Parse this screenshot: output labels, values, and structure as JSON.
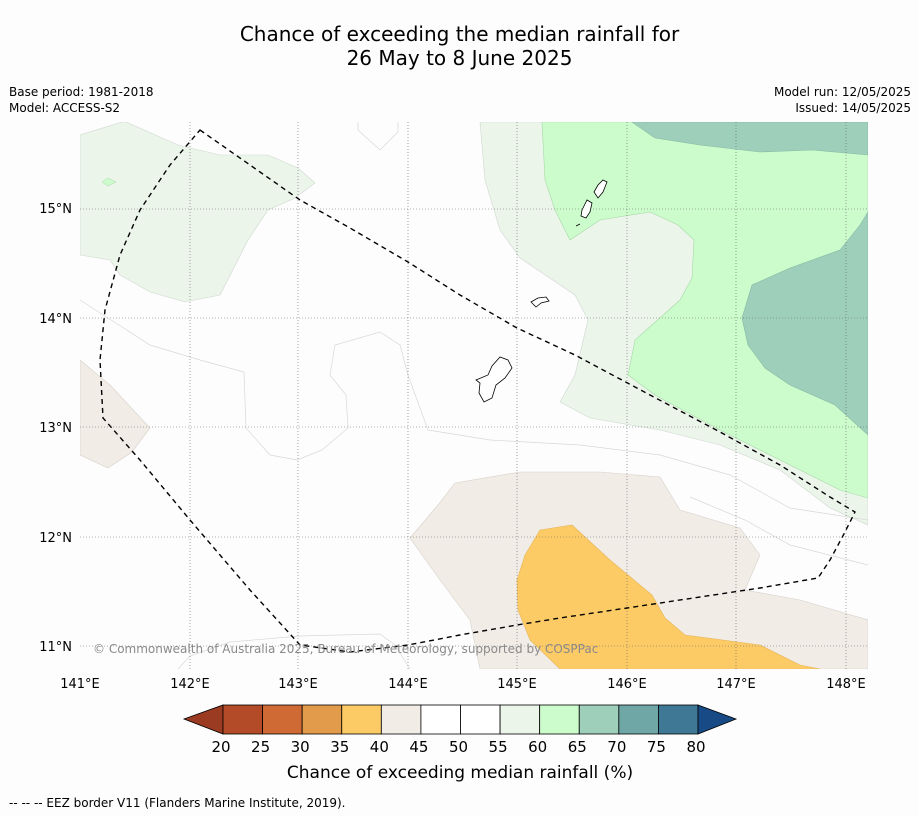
{
  "title_line1": "Chance of exceeding the median rainfall for",
  "title_line2": "26 May to 8 June 2025",
  "meta": {
    "base_period": "Base period: 1981-2018",
    "model": "Model: ACCESS-S2",
    "model_run": "Model run: 12/05/2025",
    "issued": "Issued: 14/05/2025"
  },
  "map": {
    "lat_labels": [
      "15°N",
      "14°N",
      "13°N",
      "12°N",
      "11°N"
    ],
    "lon_labels": [
      "141°E",
      "142°E",
      "143°E",
      "144°E",
      "145°E",
      "146°E",
      "147°E",
      "148°E"
    ],
    "copyright": "© Commonwealth of Australia 2025, Bureau of Meteorology, supported by COSPPac"
  },
  "colorbar": {
    "ticks": [
      "20",
      "25",
      "30",
      "35",
      "40",
      "45",
      "50",
      "55",
      "60",
      "65",
      "70",
      "75",
      "80"
    ],
    "colors": {
      "below20": "#9a3b22",
      "20_25": "#b44b28",
      "25_30": "#cf6a35",
      "30_35": "#e29b4a",
      "35_40": "#fdcb66",
      "40_45": "#f1ece6",
      "45_50": "#ffffff",
      "50_55": "#ffffff",
      "55_60": "#ebf5ea",
      "60_65": "#ccfccc",
      "65_70": "#9dcfba",
      "70_75": "#6fa6a6",
      "75_80": "#3f7895",
      "above80": "#184b85"
    },
    "label": "Chance of exceeding median rainfall (%)"
  },
  "footer": "--  --  -- EEZ border V11 (Flanders Marine Institute, 2019)."
}
